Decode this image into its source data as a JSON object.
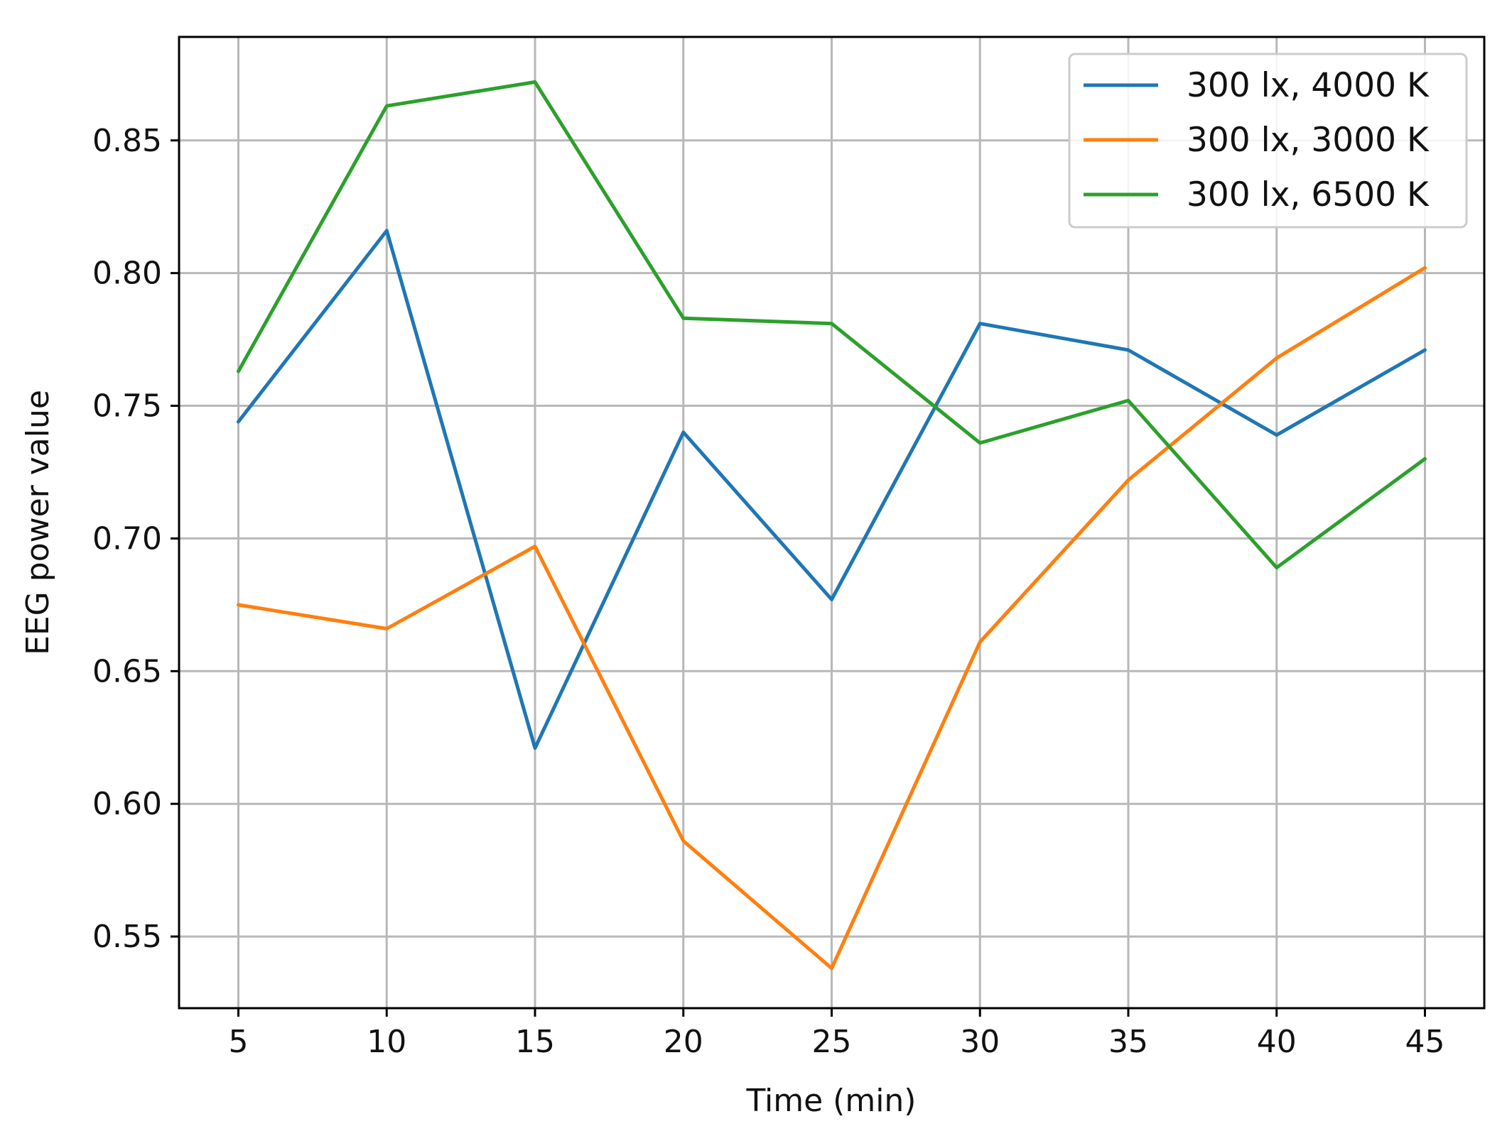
{
  "chart_data": {
    "type": "line",
    "title": "",
    "xlabel": "Time (min)",
    "ylabel": "EEG power value",
    "x": [
      5,
      10,
      15,
      20,
      25,
      30,
      35,
      40,
      45
    ],
    "xlim": [
      3,
      47
    ],
    "ylim": [
      0.523,
      0.889
    ],
    "xticks": [
      5,
      10,
      15,
      20,
      25,
      30,
      35,
      40,
      45
    ],
    "yticks": [
      0.55,
      0.6,
      0.65,
      0.7,
      0.75,
      0.8,
      0.85
    ],
    "xtick_labels": [
      "5",
      "10",
      "15",
      "20",
      "25",
      "30",
      "35",
      "40",
      "45"
    ],
    "ytick_labels": [
      "0.55",
      "0.60",
      "0.65",
      "0.70",
      "0.75",
      "0.80",
      "0.85"
    ],
    "grid": true,
    "legend_position": "top-right",
    "series": [
      {
        "name": "300 lx, 4000 K",
        "color": "#1f77b4",
        "values": [
          0.744,
          0.816,
          0.621,
          0.74,
          0.677,
          0.781,
          0.771,
          0.739,
          0.771
        ]
      },
      {
        "name": "300 lx, 3000 K",
        "color": "#ff7f0e",
        "values": [
          0.675,
          0.666,
          0.697,
          0.586,
          0.538,
          0.661,
          0.722,
          0.768,
          0.802
        ]
      },
      {
        "name": "300 lx, 6500 K",
        "color": "#2ca02c",
        "values": [
          0.763,
          0.863,
          0.872,
          0.783,
          0.781,
          0.736,
          0.752,
          0.689,
          0.73
        ]
      }
    ]
  }
}
